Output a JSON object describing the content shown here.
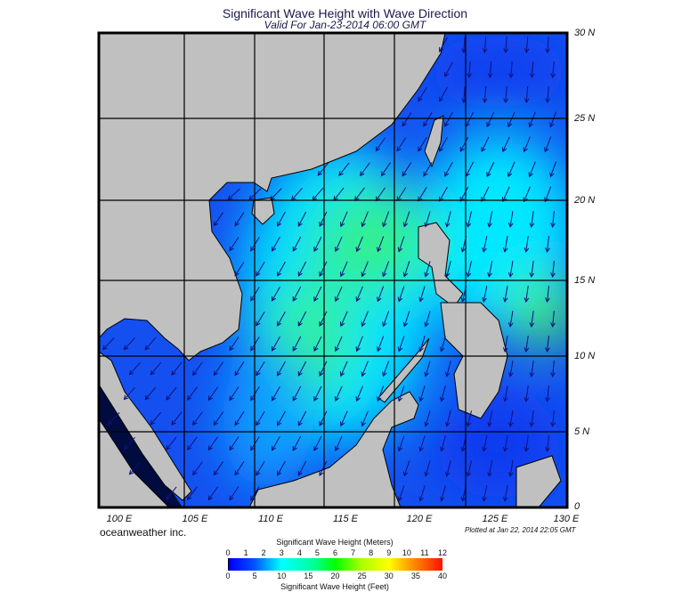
{
  "title": "Significant Wave Height with Wave Direction",
  "subtitle": "Valid For Jan-23-2014 06:00 GMT",
  "latitude_labels": [
    "30 N",
    "25 N",
    "20 N",
    "15 N",
    "10 N",
    "5 N",
    "0"
  ],
  "longitude_labels": [
    "100 E",
    "105 E",
    "110 E",
    "115 E",
    "120 E",
    "125 E",
    "130 E"
  ],
  "brand": "oceanweather inc.",
  "plotted": "Plotted at Jan 22, 2014 22:05 GMT",
  "colorbar": {
    "meters_title": "Significant Wave Height (Meters)",
    "meters_ticks": [
      "0",
      "1",
      "2",
      "3",
      "4",
      "5",
      "6",
      "7",
      "8",
      "9",
      "10",
      "11",
      "12"
    ],
    "feet_ticks": [
      "0",
      "5",
      "10",
      "15",
      "20",
      "25",
      "30",
      "35",
      "40"
    ],
    "feet_title": "Significant Wave Height (Feet)"
  },
  "colors": {
    "land": "#c0c0c0",
    "sea_low": "#1450f0",
    "sea_mid": "#00e8ff",
    "sea_high": "#20f080",
    "arrow": "#10107a"
  }
}
